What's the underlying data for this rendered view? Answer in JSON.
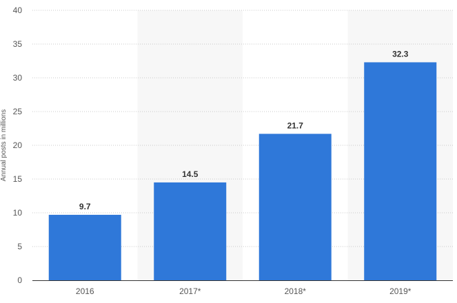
{
  "chart_data": {
    "type": "bar",
    "categories": [
      "2016",
      "2017*",
      "2018*",
      "2019*"
    ],
    "values": [
      9.7,
      14.5,
      21.7,
      32.3
    ],
    "value_labels": [
      "9.7",
      "14.5",
      "21.7",
      "32.3"
    ],
    "title": "",
    "xlabel": "",
    "ylabel": "Annual posts in millions",
    "ylim": [
      0,
      40
    ],
    "yticks": [
      0,
      5,
      10,
      15,
      20,
      25,
      30,
      35,
      40
    ],
    "grid": true,
    "legend": "none",
    "colors": {
      "bar": "#2f78d9",
      "alt_band": "#f7f7f7",
      "grid": "#c8c8c8",
      "axis": "#333333",
      "tick_text": "#555555",
      "label_text": "#333333"
    }
  }
}
